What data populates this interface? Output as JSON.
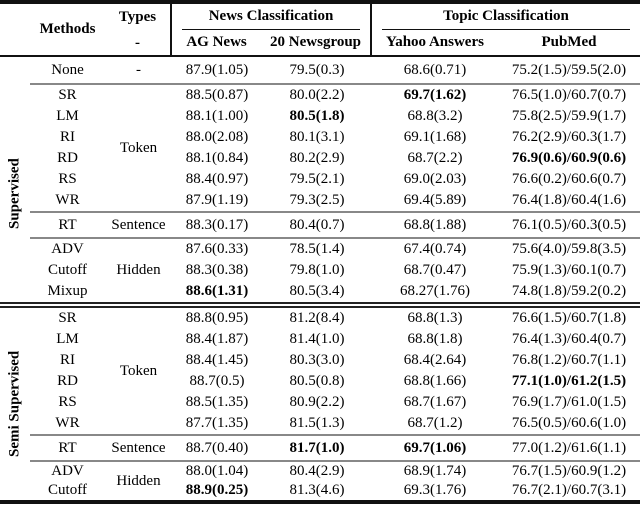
{
  "table": {
    "header": {
      "methods": "Methods",
      "types": "Types",
      "types_sub": "-",
      "groups": [
        {
          "label": "News Classification",
          "cols": [
            "AG News",
            "20 Newsgroup"
          ]
        },
        {
          "label": "Topic Classification",
          "cols": [
            "Yahoo Answers",
            "PubMed"
          ]
        }
      ]
    },
    "colors": {
      "rule_black": "#111111",
      "rule_gray": "#888888"
    },
    "none_row": {
      "method": "None",
      "type": "-",
      "values": [
        "87.9(1.05)",
        "79.5(0.3)",
        "68.6(0.71)",
        "75.2(1.5)/59.5(2.0)"
      ]
    },
    "sections": [
      {
        "id": "supervised",
        "label": "Supervised",
        "blocks": [
          {
            "type": "Token",
            "size": "normal",
            "rows": [
              {
                "m": "SR",
                "v": [
                  "88.5(0.87)",
                  "80.0(2.2)",
                  "69.7(1.62)",
                  "76.5(1.0)/60.7(0.7)"
                ],
                "b": [
                  2
                ]
              },
              {
                "m": "LM",
                "v": [
                  "88.1(1.00)",
                  "80.5(1.8)",
                  "68.8(3.2)",
                  "75.8(2.5)/59.9(1.7)"
                ],
                "b": [
                  1
                ]
              },
              {
                "m": "RI",
                "v": [
                  "88.0(2.08)",
                  "80.1(3.1)",
                  "69.1(1.68)",
                  "76.2(2.9)/60.3(1.7)"
                ],
                "b": []
              },
              {
                "m": "RD",
                "v": [
                  "88.1(0.84)",
                  "80.2(2.9)",
                  "68.7(2.2)",
                  "76.9(0.6)/60.9(0.6)"
                ],
                "b": [
                  3
                ]
              },
              {
                "m": "RS",
                "v": [
                  "88.4(0.97)",
                  "79.5(2.1)",
                  "69.0(2.03)",
                  "76.6(0.2)/60.6(0.7)"
                ],
                "b": []
              },
              {
                "m": "WR",
                "v": [
                  "87.9(1.19)",
                  "79.3(2.5)",
                  "69.4(5.89)",
                  "76.4(1.8)/60.4(1.6)"
                ],
                "b": []
              }
            ]
          },
          {
            "type": "Sentence",
            "size": "rt",
            "rows": [
              {
                "m": "RT",
                "v": [
                  "88.3(0.17)",
                  "80.4(0.7)",
                  "68.8(1.88)",
                  "76.1(0.5)/60.3(0.5)"
                ],
                "b": []
              }
            ]
          },
          {
            "type": "Hidden",
            "size": "normal",
            "rows": [
              {
                "m": "ADV",
                "v": [
                  "87.6(0.33)",
                  "78.5(1.4)",
                  "67.4(0.74)",
                  "75.6(4.0)/59.8(3.5)"
                ],
                "b": []
              },
              {
                "m": "Cutoff",
                "v": [
                  "88.3(0.38)",
                  "79.8(1.0)",
                  "68.7(0.47)",
                  "75.9(1.3)/60.1(0.7)"
                ],
                "b": []
              },
              {
                "m": "Mixup",
                "v": [
                  "88.6(1.31)",
                  "80.5(3.4)",
                  "68.27(1.76)",
                  "74.8(1.8)/59.2(0.2)"
                ],
                "b": [
                  0
                ]
              }
            ]
          }
        ]
      },
      {
        "id": "semi-supervised",
        "label": "Semi Supervised",
        "blocks": [
          {
            "type": "Token",
            "size": "normal",
            "rows": [
              {
                "m": "SR",
                "v": [
                  "88.8(0.95)",
                  "81.2(8.4)",
                  "68.8(1.3)",
                  "76.6(1.5)/60.7(1.8)"
                ],
                "b": []
              },
              {
                "m": "LM",
                "v": [
                  "88.4(1.87)",
                  "81.4(1.0)",
                  "68.8(1.8)",
                  "76.4(1.3)/60.4(0.7)"
                ],
                "b": []
              },
              {
                "m": "RI",
                "v": [
                  "88.4(1.45)",
                  "80.3(3.0)",
                  "68.4(2.64)",
                  "76.8(1.2)/60.7(1.1)"
                ],
                "b": []
              },
              {
                "m": "RD",
                "v": [
                  "88.7(0.5)",
                  "80.5(0.8)",
                  "68.8(1.66)",
                  "77.1(1.0)/61.2(1.5)"
                ],
                "b": [
                  3
                ]
              },
              {
                "m": "RS",
                "v": [
                  "88.5(1.35)",
                  "80.9(2.2)",
                  "68.7(1.67)",
                  "76.9(1.7)/61.0(1.5)"
                ],
                "b": []
              },
              {
                "m": "WR",
                "v": [
                  "87.7(1.35)",
                  "81.5(1.3)",
                  "68.7(1.2)",
                  "76.5(0.5)/60.6(1.0)"
                ],
                "b": []
              }
            ]
          },
          {
            "type": "Sentence",
            "size": "rt",
            "rows": [
              {
                "m": "RT",
                "v": [
                  "88.7(0.40)",
                  "81.7(1.0)",
                  "69.7(1.06)",
                  "77.0(1.2)/61.6(1.1)"
                ],
                "b": [
                  1,
                  2
                ]
              }
            ]
          },
          {
            "type": "Hidden",
            "size": "tight",
            "rows": [
              {
                "m": "ADV",
                "v": [
                  "88.0(1.04)",
                  "80.4(2.9)",
                  "68.9(1.74)",
                  "76.7(1.5)/60.9(1.2)"
                ],
                "b": []
              },
              {
                "m": "Cutoff",
                "v": [
                  "88.9(0.25)",
                  "81.3(4.6)",
                  "69.3(1.76)",
                  "76.7(2.1)/60.7(3.1)"
                ],
                "b": [
                  0
                ]
              }
            ]
          }
        ]
      }
    ]
  }
}
